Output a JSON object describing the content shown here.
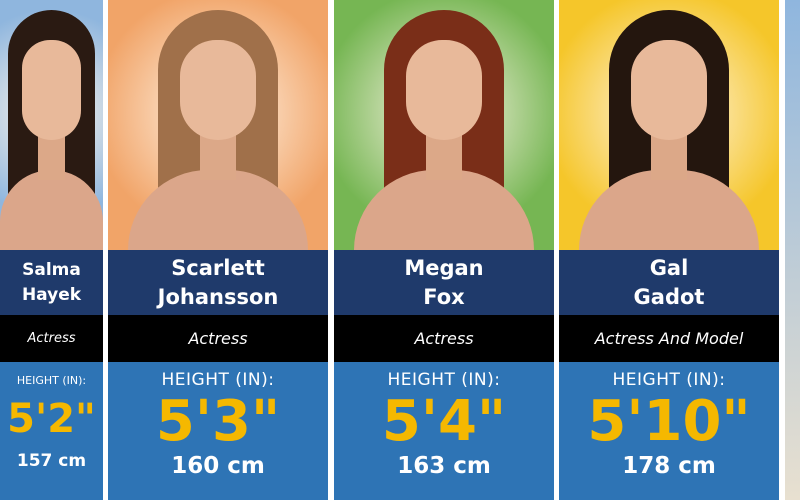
{
  "height_label": "HEIGHT (IN):",
  "cards": [
    {
      "first": "Salma",
      "last": "Hayek",
      "job": "Actress",
      "height": "5'2\"",
      "cm": "157 cm",
      "bg": "#8fb6de",
      "hair": "#2a1a12"
    },
    {
      "first": "Scarlett",
      "last": "Johansson",
      "job": "Actress",
      "height": "5'3\"",
      "cm": "160 cm",
      "bg": "#f1a468",
      "hair": "#a0704a"
    },
    {
      "first": "Megan",
      "last": "Fox",
      "job": "Actress",
      "height": "5'4\"",
      "cm": "163 cm",
      "bg": "#76b653",
      "hair": "#7a2e18"
    },
    {
      "first": "Gal",
      "last": "Gadot",
      "job": "Actress And Model",
      "height": "5'10\"",
      "cm": "178 cm",
      "bg": "#f5c62a",
      "hair": "#24160e"
    }
  ],
  "colors": {
    "name_band": "#1f3a6b",
    "job_band": "#000000",
    "stats_band": "#2e74b5",
    "height_value": "#f5b800"
  }
}
